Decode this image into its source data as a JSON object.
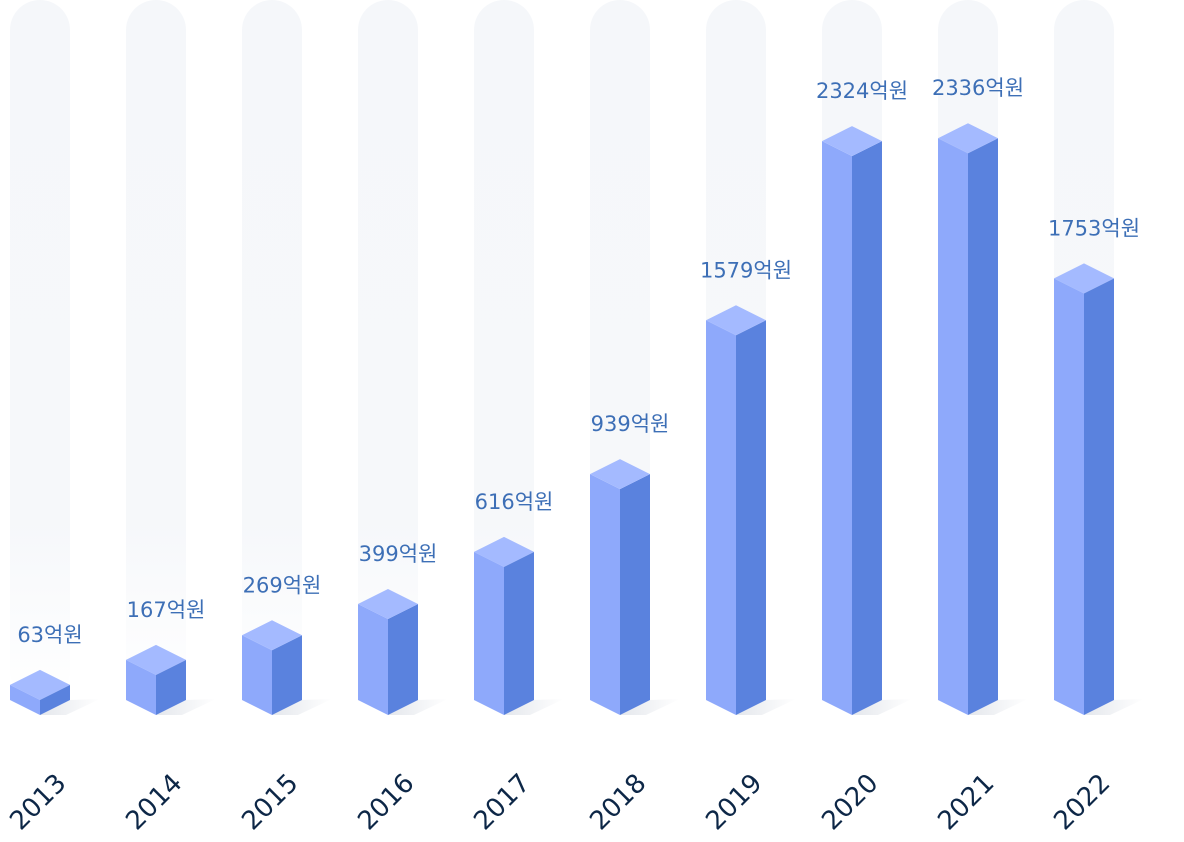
{
  "chart_data": {
    "type": "bar",
    "title": "",
    "xlabel": "",
    "ylabel": "",
    "categories": [
      "2013",
      "2014",
      "2015",
      "2016",
      "2017",
      "2018",
      "2019",
      "2020",
      "2021",
      "2022"
    ],
    "values": [
      63,
      167,
      269,
      399,
      616,
      939,
      1579,
      2324,
      2336,
      1753
    ],
    "value_labels": [
      "63억원",
      "167억원",
      "269억원",
      "399억원",
      "616억원",
      "939억원",
      "1579억원",
      "2324억원",
      "2336억원",
      "1753억원"
    ],
    "ylim": [
      0,
      2800
    ],
    "grid": false,
    "legend": "none",
    "style": "3d-isometric-column",
    "colors": {
      "bar_front": "#8ea9fb",
      "bar_side": "#5a82de",
      "bar_top": "#a4baff",
      "track": "#f5f7fa",
      "shadow": "#e9ecf0",
      "value_label": "#3d6fb6",
      "category_label": "#0d2747"
    }
  }
}
